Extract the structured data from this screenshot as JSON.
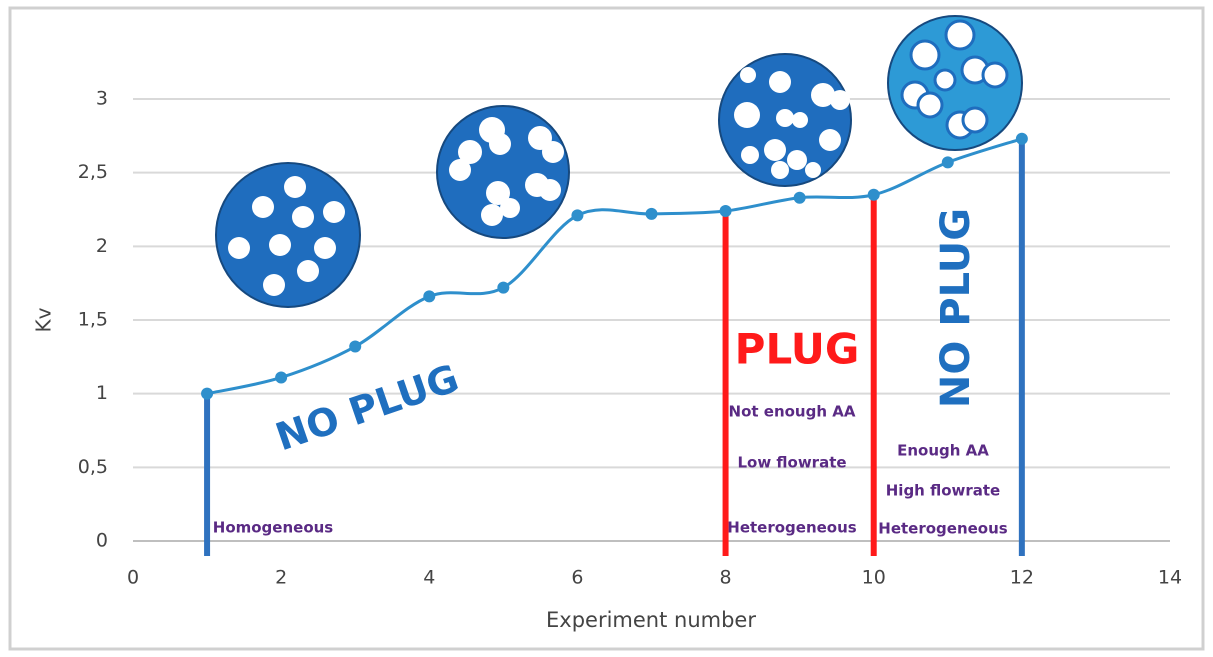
{
  "chart_data": {
    "type": "line",
    "x_label": "Experiment number",
    "y_label": "Kv",
    "x": [
      1,
      2,
      3,
      4,
      5,
      6,
      7,
      8,
      9,
      10,
      11,
      12
    ],
    "series": [
      {
        "color": "#2e8fcc",
        "values": [
          1.0,
          1.11,
          1.32,
          1.66,
          1.72,
          2.21,
          2.22,
          2.24,
          2.33,
          2.35,
          2.57,
          2.73
        ]
      }
    ],
    "vlines": [
      {
        "x": 1,
        "color": "#2f72bf"
      },
      {
        "x": 8,
        "color": "#ff1a1a"
      },
      {
        "x": 10,
        "color": "#ff1a1a"
      },
      {
        "x": 12,
        "color": "#2f72bf"
      }
    ],
    "xlim": [
      0,
      14
    ],
    "xticks": [
      0,
      2,
      4,
      6,
      8,
      10,
      12,
      14
    ],
    "ylim": [
      0,
      3
    ],
    "yticks": [
      0,
      {
        "value": 0.5,
        "label": "0,5"
      },
      1,
      {
        "value": 1.5,
        "label": "1,5"
      },
      2,
      {
        "value": 2.5,
        "label": "2,5"
      },
      3
    ],
    "grid": true,
    "annotations": [
      "NO PLUG",
      "Homogeneous",
      "PLUG",
      "Not enough AA",
      "Low flowrate",
      "Heterogeneous",
      "NO PLUG",
      "Enough AA",
      "High flowrate",
      "Heterogeneous"
    ]
  }
}
